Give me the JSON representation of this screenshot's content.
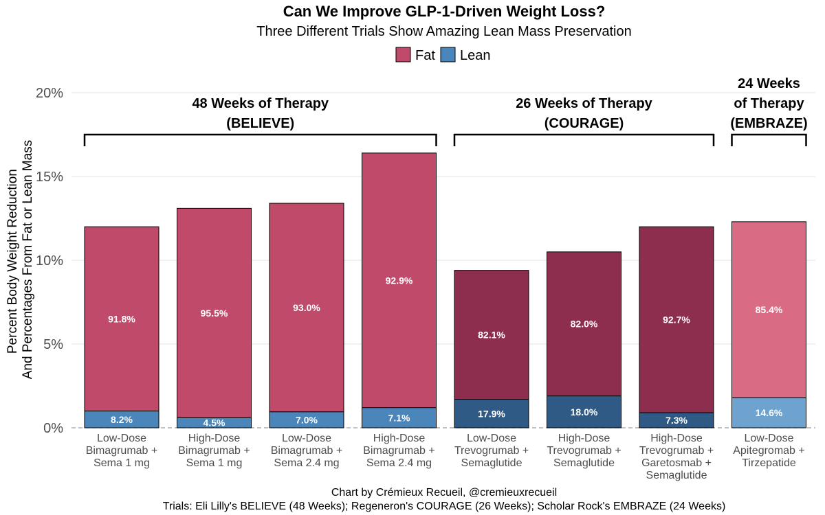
{
  "chart_data": {
    "type": "bar",
    "stacked": true,
    "title": "Can We Improve GLP-1-Driven Weight Loss?",
    "subtitle": "Three Different Trials Show Amazing Lean Mass Preservation",
    "ylabel_lines": [
      "Percent Body Weight Reduction",
      "And Percentages From Fat or Lean Mass"
    ],
    "ylim": [
      0,
      20
    ],
    "yticks": [
      "0%",
      "5%",
      "10%",
      "15%",
      "20%"
    ],
    "ytick_values": [
      0,
      5,
      10,
      15,
      20
    ],
    "grid": true,
    "legend": {
      "placement": "top",
      "entries": [
        {
          "name": "Fat",
          "color": "#c04a6a"
        },
        {
          "name": "Lean",
          "color": "#4a86ba"
        }
      ]
    },
    "categories": [
      [
        "Low-Dose",
        "Bimagrumab +",
        "Sema 1 mg"
      ],
      [
        "High-Dose",
        "Bimagrumab +",
        "Sema 1 mg"
      ],
      [
        "Low-Dose",
        "Bimagrumab +",
        "Sema 2.4 mg"
      ],
      [
        "High-Dose",
        "Bimagrumab +",
        "Sema 2.4 mg"
      ],
      [
        "Low-Dose",
        "Trevogrumab +",
        "Semaglutide"
      ],
      [
        "High-Dose",
        "Trevogrumab +",
        "Semaglutide"
      ],
      [
        "High-Dose",
        "Trevogrumab +",
        "Garetosmab +",
        "Semaglutide"
      ],
      [
        "Low-Dose",
        "Apitegromab +",
        "Tirzepatide"
      ]
    ],
    "total_loss": [
      12.0,
      13.1,
      13.4,
      16.4,
      9.4,
      10.5,
      12.0,
      12.3
    ],
    "series": [
      {
        "name": "Fat",
        "labels": [
          "91.8%",
          "95.5%",
          "93.0%",
          "92.9%",
          "82.1%",
          "82.0%",
          "92.7%",
          "85.4%"
        ]
      },
      {
        "name": "Lean",
        "values": [
          1.0,
          0.6,
          0.95,
          1.2,
          1.7,
          1.9,
          0.9,
          1.8
        ],
        "labels": [
          "8.2%",
          "4.5%",
          "7.0%",
          "7.1%",
          "17.9%",
          "18.0%",
          "7.3%",
          "14.6%"
        ]
      }
    ],
    "bar_colors": {
      "fat": [
        "#c04a6a",
        "#c04a6a",
        "#c04a6a",
        "#c04a6a",
        "#8e2e4f",
        "#8e2e4f",
        "#8e2e4f",
        "#d96b85"
      ],
      "lean": [
        "#4a86ba",
        "#4a86ba",
        "#4a86ba",
        "#4a86ba",
        "#2f5a86",
        "#2f5a86",
        "#2f5a86",
        "#6fa3cf"
      ]
    },
    "groups": [
      {
        "label_lines": [
          "48 Weeks of Therapy",
          "(BELIEVE)"
        ],
        "first": 0,
        "last": 3
      },
      {
        "label_lines": [
          "26 Weeks of Therapy",
          "(COURAGE)"
        ],
        "first": 4,
        "last": 6
      },
      {
        "label_lines": [
          "24 Weeks",
          "of Therapy",
          "(EMBRAZE)"
        ],
        "first": 7,
        "last": 7
      }
    ]
  },
  "caption_lines": [
    "Chart by Crémieux Recueil, @cremieuxrecueil",
    "Trials: Eli Lilly's BELIEVE (48 Weeks); Regeneron's COURAGE (26 Weeks); Scholar Rock's EMBRAZE (24 Weeks)"
  ]
}
